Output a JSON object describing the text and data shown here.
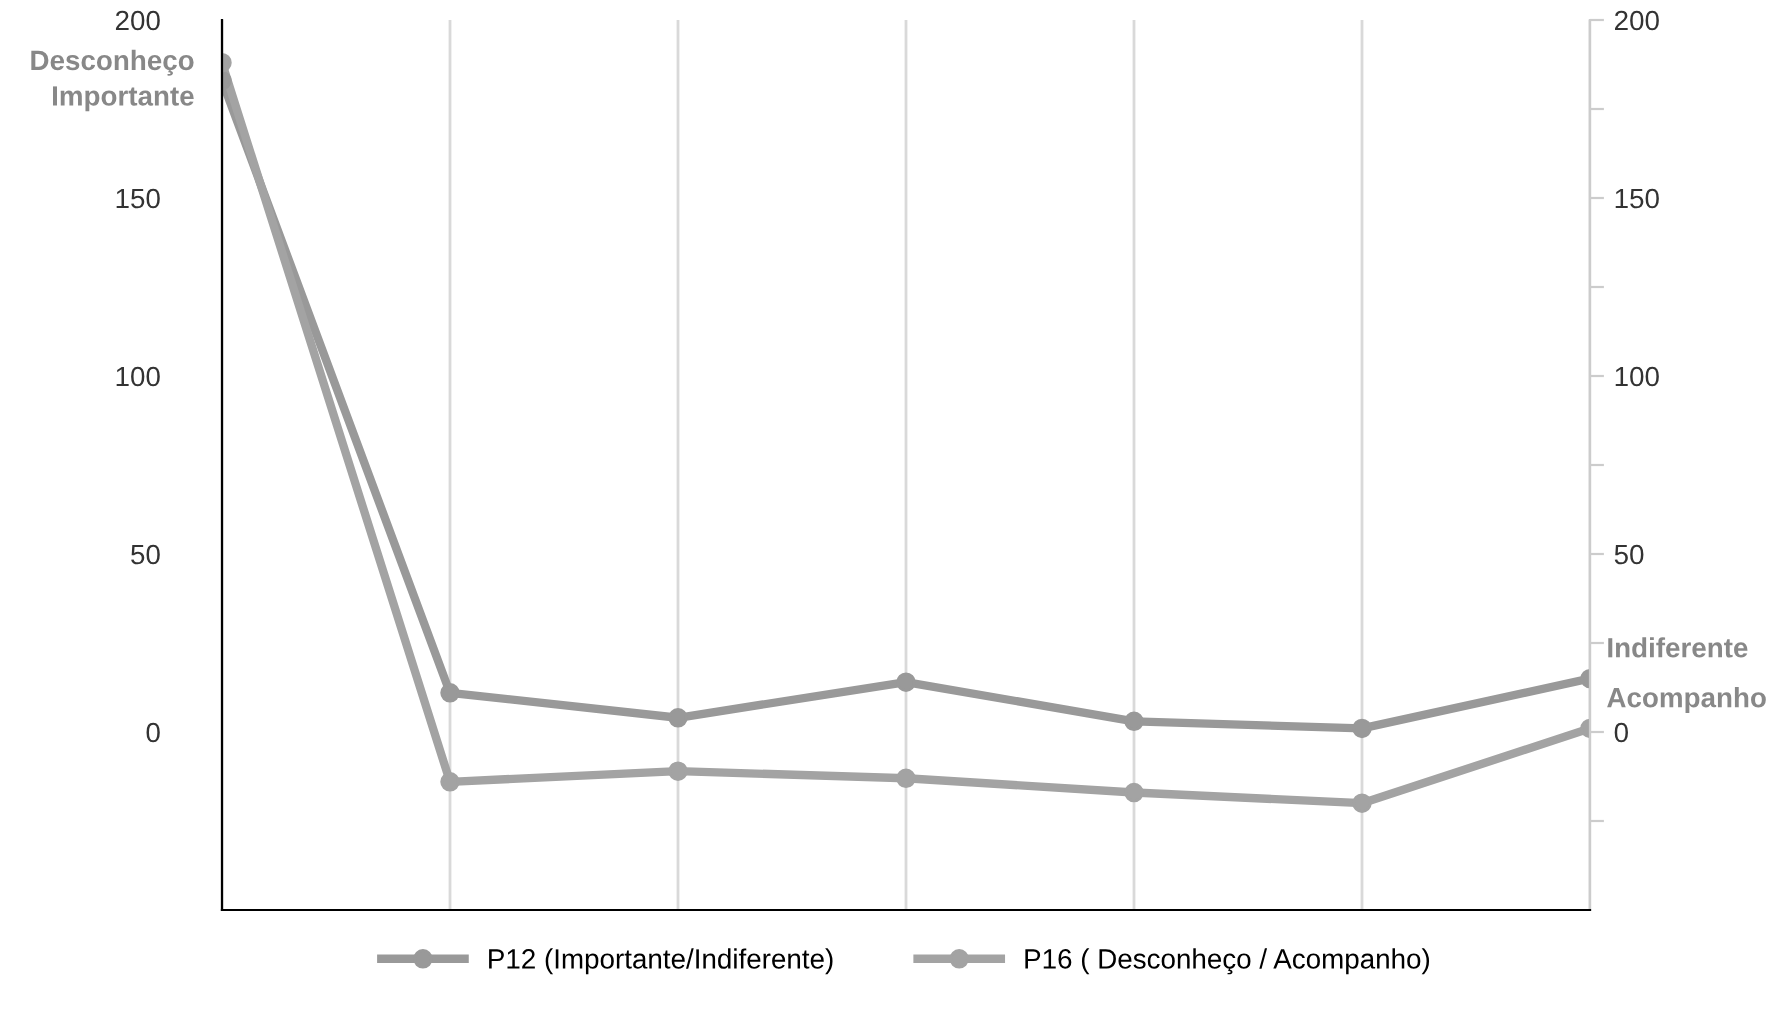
{
  "chart_data": {
    "type": "line",
    "categories": [
      null,
      null,
      null,
      null,
      null,
      null,
      null
    ],
    "series": [
      {
        "name": "P12 (Importante/Indiferente)",
        "color": "#999999",
        "values": [
          183,
          11,
          4,
          14,
          3,
          1,
          15
        ]
      },
      {
        "name": "P16 ( Desconheço / Acompanho)",
        "color": "#a3a3a3",
        "values": [
          188,
          -14,
          -11,
          -13,
          -17,
          -20,
          1
        ]
      }
    ],
    "ylim": [
      -50,
      200
    ],
    "yticks": [
      0,
      50,
      100,
      150,
      200
    ],
    "y2lim": [
      -50,
      200
    ],
    "y2ticks": [
      {
        "value": -25,
        "label": null
      },
      0,
      {
        "value": 25,
        "label": null
      },
      50,
      {
        "value": 75,
        "label": null
      },
      100,
      {
        "value": 125,
        "label": null
      },
      150,
      {
        "value": 175,
        "label": null
      },
      200
    ],
    "annotations": [
      "Desconheço",
      "Importante",
      "Indiferente",
      "Acompanho"
    ],
    "grid": "x",
    "legend": "bottom",
    "marker": "circle",
    "line_style": "solid"
  }
}
